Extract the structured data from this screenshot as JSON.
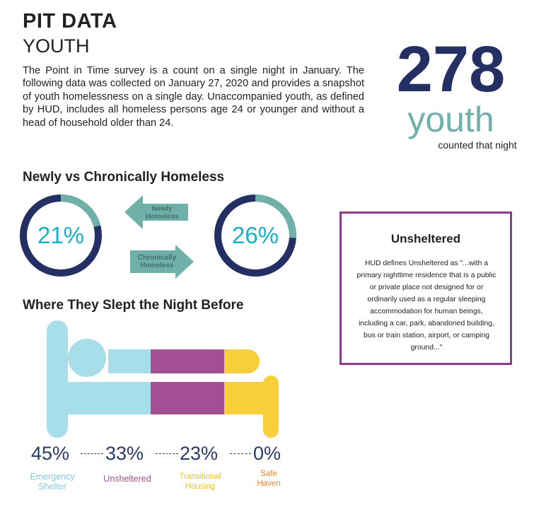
{
  "header": {
    "title": "PIT DATA",
    "subtitle": "YOUTH",
    "intro": "The Point in Time survey is a count on a single night in January. The following data was collected on January 27, 2020 and provides a snapshot of youth homelessness on a single day. Unaccompanied youth, as defined by HUD, includes all homeless persons age 24 or younger and without a head of household older than 24."
  },
  "highlight": {
    "number": "278",
    "unit": "youth",
    "caption": "counted that night"
  },
  "newly_vs_chronic": {
    "heading": "Newly vs Chronically Homeless",
    "newly": {
      "value": "21%",
      "fraction": 0.21,
      "label_line1": "Newly",
      "label_line2": "Homeless"
    },
    "chronic": {
      "value": "26%",
      "fraction": 0.26,
      "label_line1": "Chronically",
      "label_line2": "Homeless"
    }
  },
  "unsheltered_box": {
    "title": "Unsheltered",
    "text": "HUD defines Unsheltered as \"...with a primary nighttime residence that is a public or private place not designed for or ordinarily used as a regular sleeping accommodation for human beings, including a car, park, abandoned building, bus or train station, airport, or camping ground...\""
  },
  "slept_before": {
    "heading": "Where They Slept the Night Before",
    "categories": [
      {
        "value": "45%",
        "line1": "Emergency",
        "line2": "Shelter",
        "color": "#a8ddea"
      },
      {
        "value": "33%",
        "line1": "Unsheltered",
        "line2": "",
        "color": "#a34f93"
      },
      {
        "value": "23%",
        "line1": "Transitional",
        "line2": "Housing",
        "color": "#f7cf3b"
      },
      {
        "value": "0%",
        "line1": "Safe",
        "line2": "Haven",
        "color": "#e48b2c"
      }
    ]
  },
  "colors": {
    "navy": "#243064",
    "teal": "#6fb0a9",
    "cyan": "#17b0c9",
    "purple": "#8b3d8b"
  }
}
